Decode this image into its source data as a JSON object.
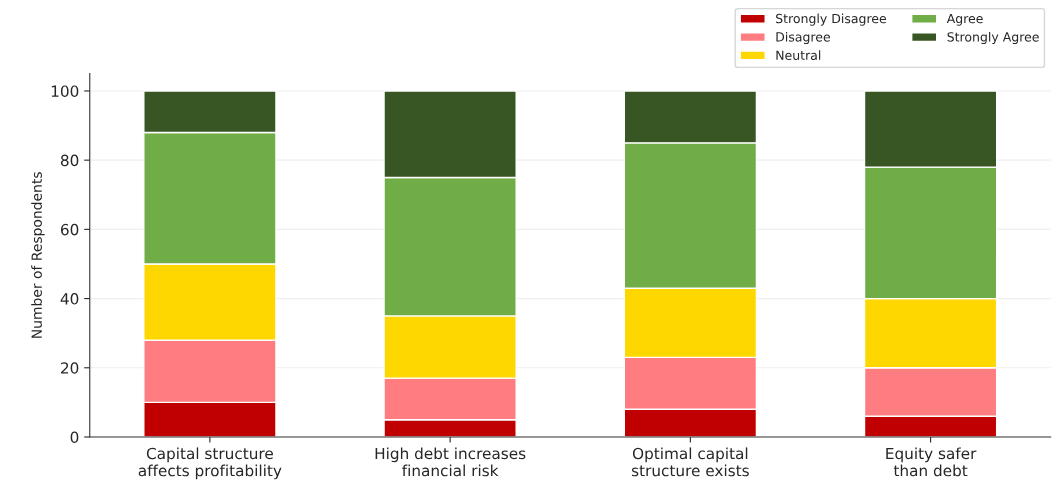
{
  "chart_data": {
    "type": "bar",
    "stacked": true,
    "ylabel": "Number of Respondents",
    "categories": [
      "Capital structure\naffects profitability",
      "High debt increases\nfinancial risk",
      "Optimal capital\nstructure exists",
      "Equity safer\nthan debt"
    ],
    "series": [
      {
        "name": "Strongly Disagree",
        "color": "#c00000",
        "values": [
          10,
          5,
          8,
          6
        ]
      },
      {
        "name": "Disagree",
        "color": "#ff7c80",
        "values": [
          18,
          12,
          15,
          14
        ]
      },
      {
        "name": "Neutral",
        "color": "#ffd700",
        "values": [
          22,
          18,
          20,
          20
        ]
      },
      {
        "name": "Agree",
        "color": "#70ad47",
        "values": [
          38,
          40,
          42,
          38
        ]
      },
      {
        "name": "Strongly Agree",
        "color": "#375623",
        "values": [
          12,
          25,
          15,
          22
        ]
      }
    ],
    "ylim": [
      0,
      105
    ],
    "yticks": [
      0,
      20,
      40,
      60,
      80,
      100
    ],
    "grid": "y",
    "legend": "top right"
  }
}
